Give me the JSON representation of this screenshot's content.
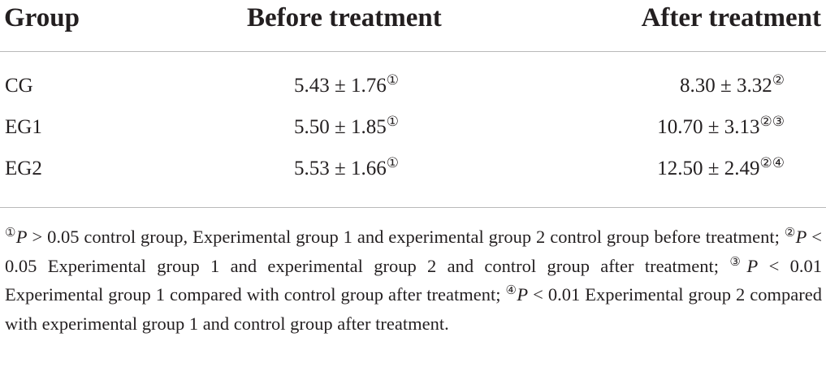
{
  "table": {
    "headers": {
      "group": "Group",
      "before": "Before treatment",
      "after": "After treatment"
    },
    "rows": [
      {
        "group": "CG",
        "before": "5.43 ± 1.76",
        "before_mark": "①",
        "after": "8.30 ± 3.32",
        "after_mark": "②"
      },
      {
        "group": "EG1",
        "before": "5.50 ± 1.85",
        "before_mark": "①",
        "after": "10.70 ± 3.13",
        "after_mark": "②③"
      },
      {
        "group": "EG2",
        "before": "5.53 ± 1.66",
        "before_mark": "①",
        "after": "12.50 ± 2.49",
        "after_mark": "②④"
      }
    ]
  },
  "footnote": {
    "parts": [
      {
        "mark": "①",
        "p": "P",
        "text": " > 0.05 control group, Experimental group 1 and experimental group 2 control group before treatment; "
      },
      {
        "mark": "②",
        "p": "P",
        "text": " < 0.05 Experimental group 1 and experimental group 2 and control group after treatment; "
      },
      {
        "mark": "③",
        "p": "P",
        "text": " < 0.01 Experimental group 1 compared with control group after treatment; "
      },
      {
        "mark": "④",
        "p": "P",
        "text": " < 0.01 Experimental group 2 compared with experimental group 1 and control group after treatment."
      }
    ]
  }
}
